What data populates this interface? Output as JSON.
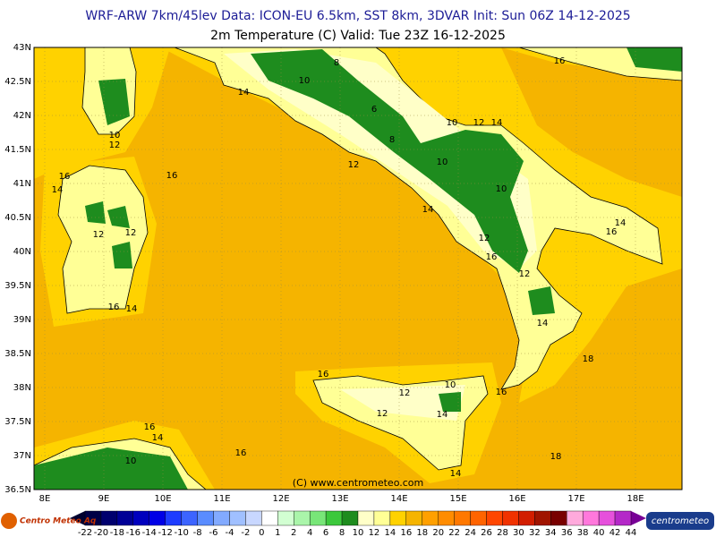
{
  "header": {
    "title": "WRF-ARW 7km/45lev  Data: ICON-EU 6.5km, SST 8km, 3DVAR  Init: Sun 06Z 14-12-2025",
    "subtitle": "2m Temperature (C)  Valid: Tue 23Z 16-12-2025"
  },
  "map": {
    "lat_labels": [
      "43N",
      "42.5N",
      "42N",
      "41.5N",
      "41N",
      "40.5N",
      "40N",
      "39.5N",
      "39N",
      "38.5N",
      "38N",
      "37.5N",
      "37N",
      "36.5N"
    ],
    "lon_labels": [
      "8E",
      "9E",
      "10E",
      "11E",
      "12E",
      "13E",
      "14E",
      "15E",
      "16E",
      "17E",
      "18E"
    ],
    "contour_labels": [
      "16",
      "14",
      "10",
      "8",
      "10",
      "12",
      "6",
      "10",
      "12",
      "14",
      "8",
      "12",
      "10",
      "16",
      "16",
      "14",
      "10",
      "14",
      "14",
      "16",
      "12",
      "12",
      "12",
      "16",
      "12",
      "16",
      "14",
      "14",
      "18",
      "16",
      "12",
      "10",
      "16",
      "12",
      "14",
      "16",
      "14",
      "10",
      "16",
      "18",
      "14"
    ],
    "copyright": "(C) www.centrometeo.com"
  },
  "colorbar": {
    "labels": [
      "-22",
      "-20",
      "-18",
      "-16",
      "-14",
      "-12",
      "-10",
      "-8",
      "-6",
      "-4",
      "-2",
      "0",
      "1",
      "2",
      "4",
      "6",
      "8",
      "10",
      "12",
      "14",
      "16",
      "18",
      "20",
      "22",
      "24",
      "26",
      "28",
      "30",
      "32",
      "34",
      "36",
      "38",
      "40",
      "42",
      "44"
    ],
    "colors": [
      "#000046",
      "#00006e",
      "#000096",
      "#0000be",
      "#0000e6",
      "#1e3cff",
      "#3c64ff",
      "#5a8cff",
      "#82aaff",
      "#a0c0ff",
      "#c8d7ff",
      "#ffffff",
      "#d2ffd2",
      "#aaf5aa",
      "#78e678",
      "#3cc83c",
      "#1e8c1e",
      "#ffffc8",
      "#ffff96",
      "#ffd200",
      "#f5b400",
      "#ffa000",
      "#ff8c00",
      "#ff7800",
      "#ff6400",
      "#ff4600",
      "#f03200",
      "#d21e00",
      "#a01400",
      "#780000",
      "#ffaadc",
      "#ff78dc",
      "#e650dc",
      "#b428c8"
    ]
  },
  "logos": {
    "left": "Centro Meteo Aq",
    "right": "centrometeo"
  }
}
